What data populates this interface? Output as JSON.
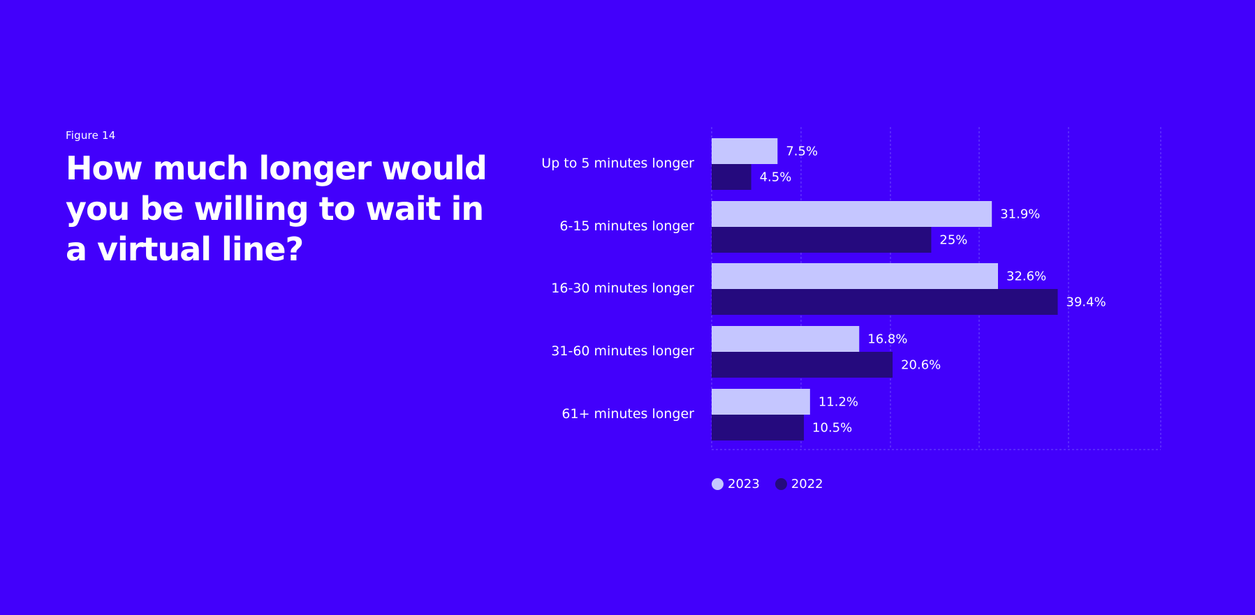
{
  "figure_label": "Figure 14",
  "chart_data": {
    "type": "bar",
    "orientation": "horizontal",
    "title": "How much longer would you be willing to wait in a virtual line?",
    "categories": [
      "Up to 5 minutes longer",
      "6-15 minutes longer",
      "16-30 minutes longer",
      "31-60 minutes longer",
      "61+ minutes longer"
    ],
    "series": [
      {
        "name": "2023",
        "color": "#c5c6ff",
        "values": [
          7.5,
          31.9,
          32.6,
          16.8,
          11.2
        ],
        "labels": [
          "7.5%",
          "31.9%",
          "32.6%",
          "16.8%",
          "11.2%"
        ]
      },
      {
        "name": "2022",
        "color": "#250a7e",
        "values": [
          4.5,
          25,
          39.4,
          20.6,
          10.5
        ],
        "labels": [
          "4.5%",
          "25%",
          "39.4%",
          "20.6%",
          "10.5%"
        ]
      }
    ],
    "xlim": [
      0,
      50
    ],
    "grid": true,
    "xlabel": "",
    "ylabel": "",
    "legend_position": "bottom-left"
  },
  "colors": {
    "background": "#4200fb",
    "gridline": "#6e4cff"
  }
}
